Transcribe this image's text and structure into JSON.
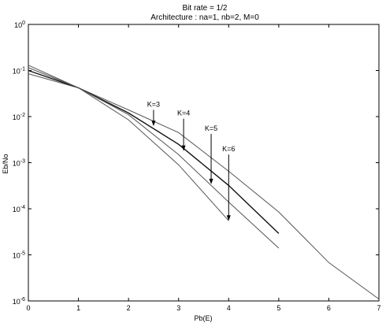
{
  "chart_data": {
    "type": "line",
    "title": "Bit rate = 1/2",
    "subtitle": "Architecture : na=1, nb=2, M=0",
    "xlabel": "Pb(E)",
    "ylabel": "Eb/No",
    "xlim": [
      0,
      7
    ],
    "ylim": [
      1e-06,
      1
    ],
    "yscale": "log",
    "grid": false,
    "x_ticks": [
      "0",
      "1",
      "2",
      "3",
      "4",
      "5",
      "6",
      "7"
    ],
    "y_ticks": [
      {
        "base": "10",
        "exp": "-6"
      },
      {
        "base": "10",
        "exp": "-5"
      },
      {
        "base": "10",
        "exp": "-4"
      },
      {
        "base": "10",
        "exp": "-3"
      },
      {
        "base": "10",
        "exp": "-2"
      },
      {
        "base": "10",
        "exp": "-1"
      },
      {
        "base": "10",
        "exp": "0"
      }
    ],
    "series": [
      {
        "name": "K=3",
        "x": [
          0,
          1,
          2,
          3,
          4,
          5,
          6,
          7
        ],
        "y": [
          0.085,
          0.042,
          0.014,
          0.0045,
          0.00065,
          8.5e-05,
          6.8e-06,
          1.1e-06
        ],
        "color": "#555555"
      },
      {
        "name": "K=4",
        "x": [
          0,
          1,
          2,
          3,
          4,
          5
        ],
        "y": [
          0.1,
          0.042,
          0.012,
          0.0025,
          0.00032,
          2.9e-05
        ],
        "color": "#111111"
      },
      {
        "name": "K=5",
        "x": [
          0,
          1,
          2,
          3,
          4,
          5
        ],
        "y": [
          0.115,
          0.042,
          0.011,
          0.0015,
          0.00014,
          1.4e-05
        ],
        "color": "#555555"
      },
      {
        "name": "K=6",
        "x": [
          0,
          1,
          2,
          3,
          4
        ],
        "y": [
          0.13,
          0.042,
          0.0085,
          0.0009,
          5.5e-05
        ],
        "color": "#555555"
      }
    ],
    "annotations": [
      {
        "text": "K=3",
        "x": 2.5,
        "y_from": 0.014,
        "y_to": 0.0062
      },
      {
        "text": "K=4",
        "x": 3.1,
        "y_from": 0.009,
        "y_to": 0.0018
      },
      {
        "text": "K=5",
        "x": 3.65,
        "y_from": 0.0042,
        "y_to": 0.00034
      },
      {
        "text": "K=6",
        "x": 4.0,
        "y_from": 0.0015,
        "y_to": 5.5e-05
      }
    ]
  }
}
